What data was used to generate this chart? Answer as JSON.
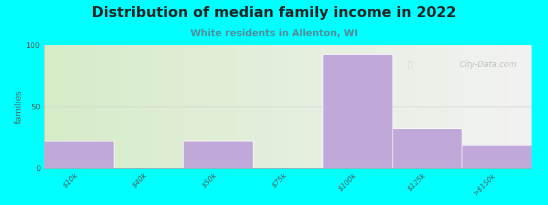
{
  "title": "Distribution of median family income in 2022",
  "subtitle": "White residents in Allenton, WI",
  "categories": [
    "$10k",
    "$40k",
    "$50k",
    "$75k",
    "$100k",
    "$125k",
    ">$150k"
  ],
  "values": [
    22,
    0,
    22,
    0,
    93,
    32,
    19
  ],
  "bar_color": "#c0a8d8",
  "bar_edge_color": "#b090c0",
  "background_color": "#00ffff",
  "plot_bg_left": "#d6ecc8",
  "plot_bg_right": "#f2f2f2",
  "ylabel": "families",
  "ylim": [
    0,
    100
  ],
  "yticks": [
    0,
    50,
    100
  ],
  "grid_color": "#cccccc",
  "title_fontsize": 15,
  "subtitle_fontsize": 10,
  "subtitle_color": "#558899",
  "title_color": "#222222",
  "watermark": "City-Data.com"
}
